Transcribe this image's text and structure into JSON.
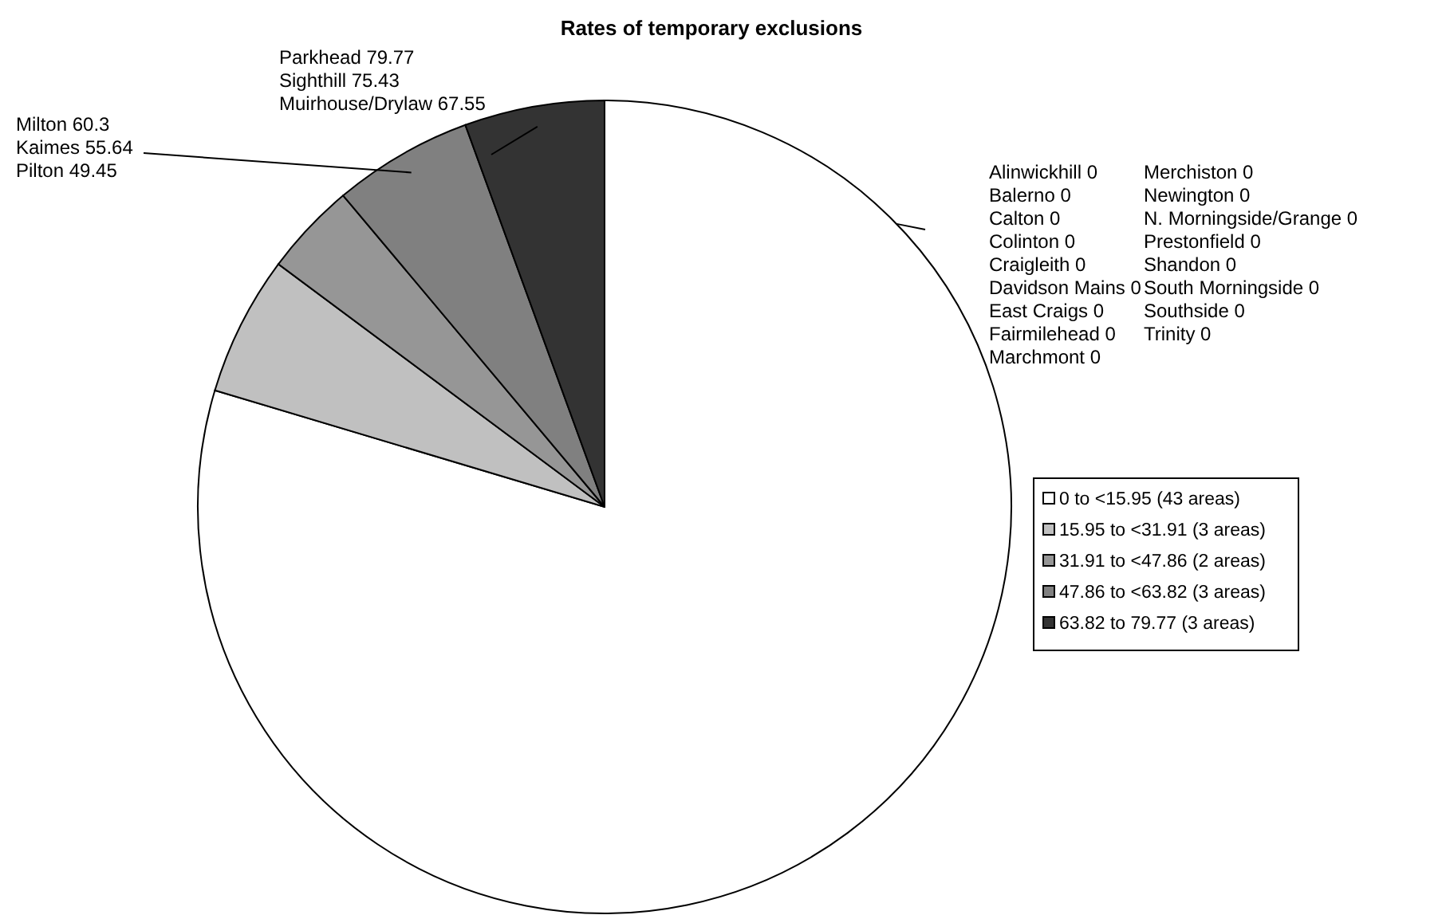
{
  "chart_data": {
    "type": "pie",
    "title": "Rates of temporary exclusions",
    "categories": [
      "0 to <15.95 (43 areas)",
      "15.95 to <31.91 (3 areas)",
      "31.91 to <47.86 (2 areas)",
      "47.86 to <63.82 (3 areas)",
      "63.82 to 79.77 (3 areas)"
    ],
    "values": [
      79.63,
      5.56,
      3.7,
      5.55,
      5.56
    ],
    "colors": [
      "#ffffff",
      "#c0c0c0",
      "#969696",
      "#808080",
      "#333333"
    ],
    "legend": "right",
    "annotations": [
      "Parkhead 79.77\nSighthill 75.43\nMuirhouse/Drylaw 67.55",
      "Milton 60.3\nKaimes 55.64\nPilton 49.45",
      "Alinwickhill 0\nBalerno 0\nCalton 0\nColinton 0\nCraigleith 0\nDavidson Mains 0\nEast Craigs 0\nFairmilehead  0\nMarchmont 0",
      "Merchiston 0\nNewington 0\nN. Morningside/Grange 0\nPrestonfield 0\nShandon 0\nSouth Morningside 0\nSouthside 0\nTrinity 0"
    ]
  }
}
